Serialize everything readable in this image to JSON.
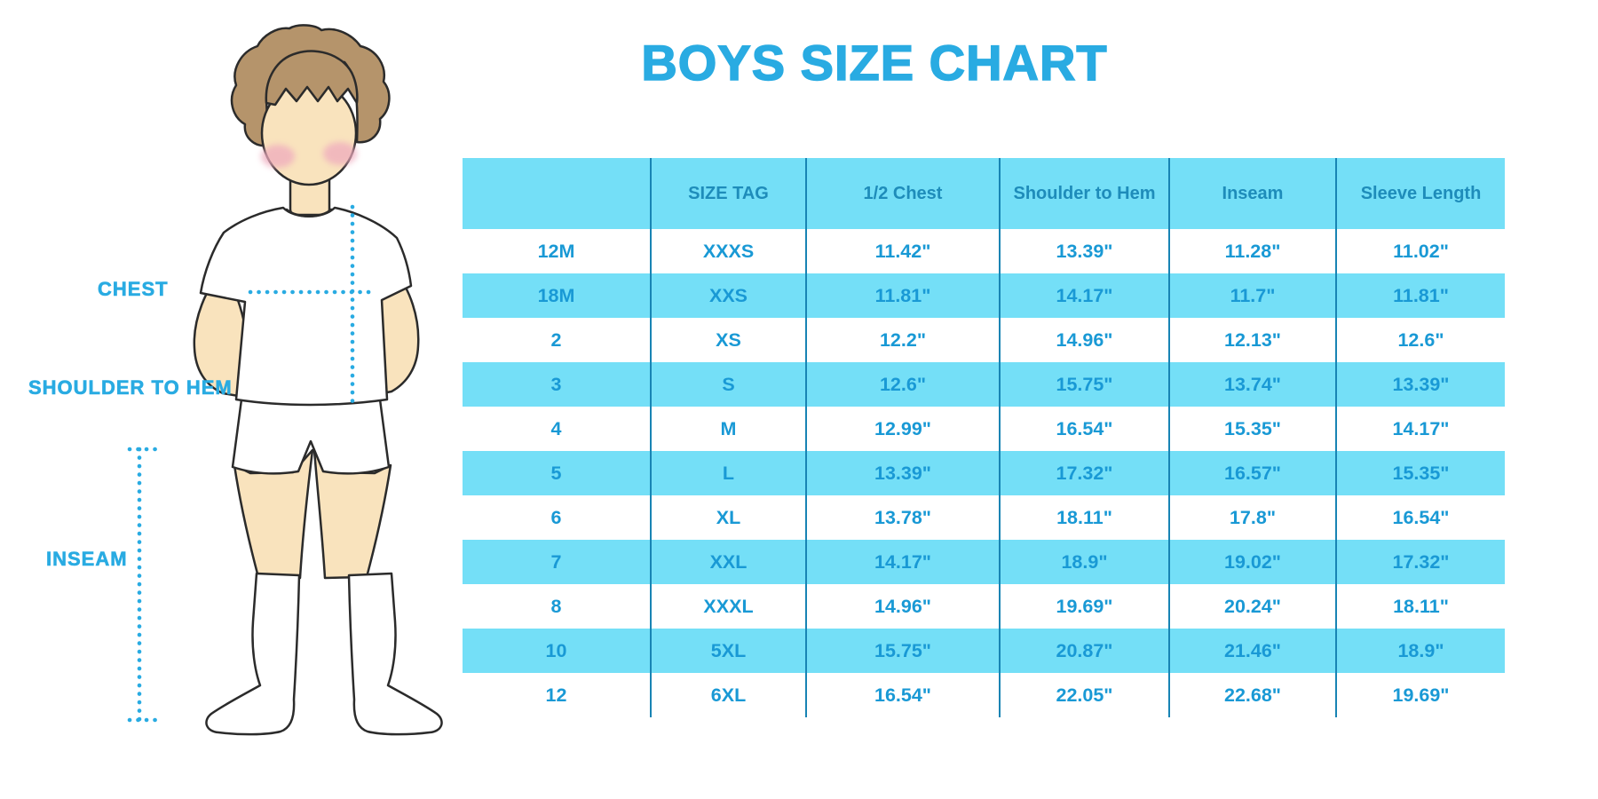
{
  "title": "BOYS SIZE CHART",
  "colors": {
    "accent": "#29ABE2",
    "stripe": "#74DFF7",
    "header_text": "#1E8CBA",
    "cell_text": "#1999D5",
    "divider": "#1884B4",
    "skin": "#F9E3BD",
    "hair": "#B5946B",
    "blush": "#EFABBE",
    "outline": "#2B2B2B"
  },
  "figure": {
    "chest_label": "CHEST",
    "shoulder_to_hem_label": "SHOULDER TO HEM",
    "inseam_label": "INSEAM"
  },
  "chart_data": {
    "type": "table",
    "title": "BOYS SIZE CHART",
    "columns": [
      "",
      "SIZE TAG",
      "1/2 Chest",
      "Shoulder to Hem",
      "Inseam",
      "Sleeve Length"
    ],
    "rows": [
      [
        "12M",
        "XXXS",
        "11.42\"",
        "13.39\"",
        "11.28\"",
        "11.02\""
      ],
      [
        "18M",
        "XXS",
        "11.81\"",
        "14.17\"",
        "11.7\"",
        "11.81\""
      ],
      [
        "2",
        "XS",
        "12.2\"",
        "14.96\"",
        "12.13\"",
        "12.6\""
      ],
      [
        "3",
        "S",
        "12.6\"",
        "15.75\"",
        "13.74\"",
        "13.39\""
      ],
      [
        "4",
        "M",
        "12.99\"",
        "16.54\"",
        "15.35\"",
        "14.17\""
      ],
      [
        "5",
        "L",
        "13.39\"",
        "17.32\"",
        "16.57\"",
        "15.35\""
      ],
      [
        "6",
        "XL",
        "13.78\"",
        "18.11\"",
        "17.8\"",
        "16.54\""
      ],
      [
        "7",
        "XXL",
        "14.17\"",
        "18.9\"",
        "19.02\"",
        "17.32\""
      ],
      [
        "8",
        "XXXL",
        "14.96\"",
        "19.69\"",
        "20.24\"",
        "18.11\""
      ],
      [
        "10",
        "5XL",
        "15.75\"",
        "20.87\"",
        "21.46\"",
        "18.9\""
      ],
      [
        "12",
        "6XL",
        "16.54\"",
        "22.05\"",
        "22.68\"",
        "19.69\""
      ]
    ]
  }
}
